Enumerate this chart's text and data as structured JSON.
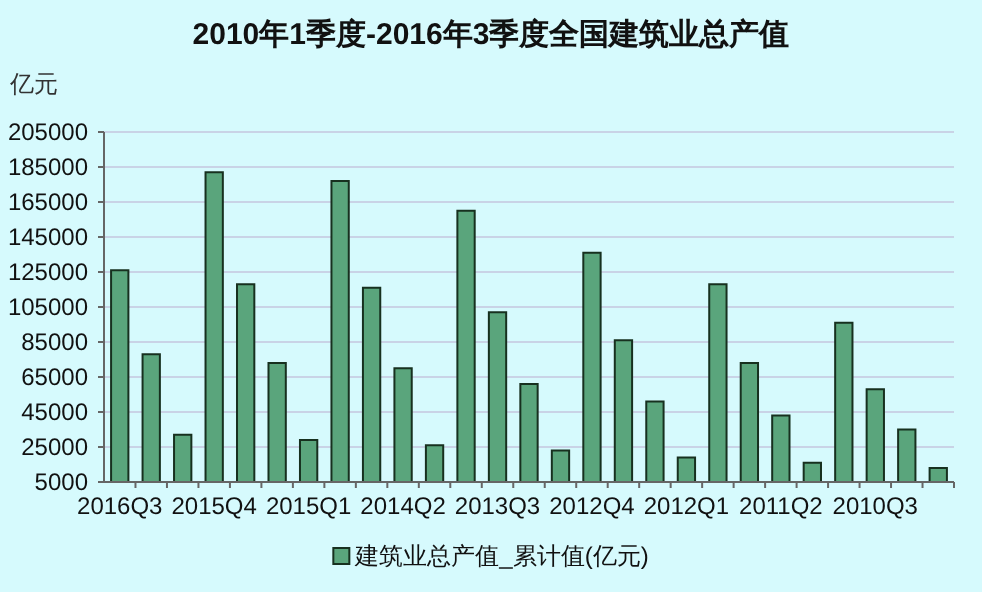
{
  "chart_data": {
    "type": "bar",
    "title": "2010年1季度-2016年3季度全国建筑业总产值",
    "ylabel": "亿元",
    "categories": [
      "2016Q3",
      null,
      null,
      "2015Q4",
      null,
      null,
      "2015Q1",
      null,
      null,
      "2014Q2",
      null,
      null,
      "2013Q3",
      null,
      null,
      "2012Q4",
      null,
      null,
      "2012Q1",
      null,
      null,
      "2011Q2",
      null,
      null,
      "2010Q3",
      null,
      null
    ],
    "series": [
      {
        "name": "建筑业总产值_累计值(亿元)",
        "color": "#5aa57c",
        "values": [
          126000,
          78000,
          32000,
          182000,
          118000,
          73000,
          29000,
          177000,
          116000,
          70000,
          26000,
          160000,
          102000,
          61000,
          23000,
          136000,
          86000,
          51000,
          19000,
          118000,
          73000,
          43000,
          16000,
          96000,
          58000,
          35000,
          13000
        ]
      }
    ],
    "ylim": [
      5000,
      205000
    ],
    "yticks": [
      5000,
      25000,
      45000,
      65000,
      85000,
      105000,
      125000,
      145000,
      165000,
      185000,
      205000
    ],
    "grid": "y",
    "legend": "bottom"
  }
}
